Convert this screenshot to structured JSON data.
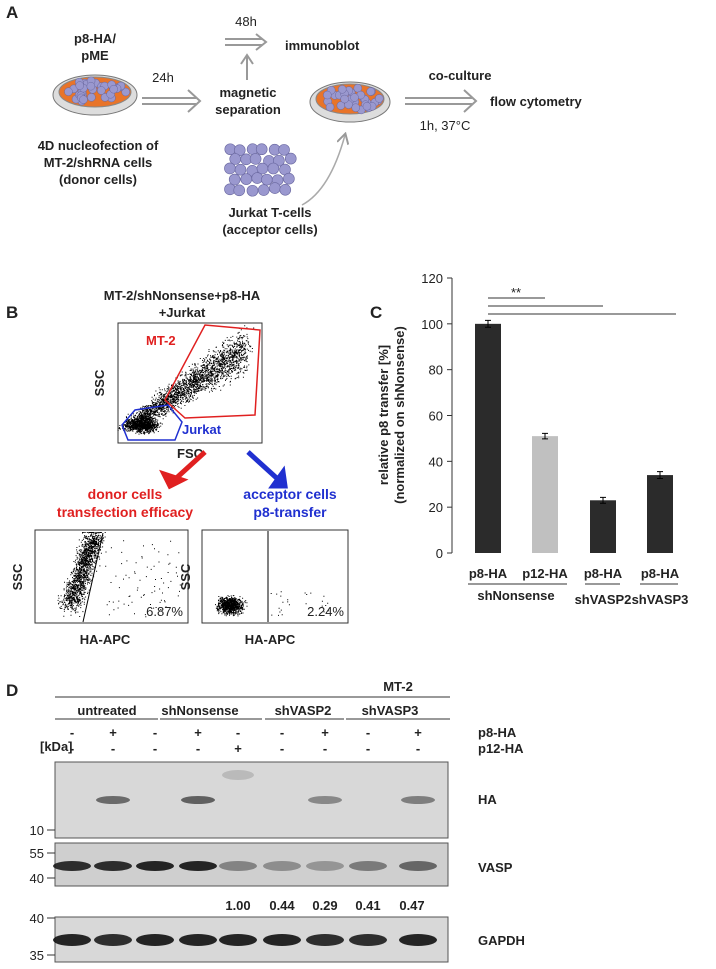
{
  "panel_labels": [
    "A",
    "B",
    "C",
    "D"
  ],
  "panel_a": {
    "dish_label": [
      "p8-HA/",
      "pME"
    ],
    "time_1": "24h",
    "time_2": "48h",
    "immunoblot": "immunoblot",
    "separation": [
      "magnetic",
      "separation"
    ],
    "coculture": "co-culture",
    "coculture_conditions": "1h, 37°C",
    "readout": "flow cytometry",
    "donor": [
      "4D nucleofection of",
      "MT-2/shRNA cells",
      "(donor cells)"
    ],
    "acceptor": [
      "Jurkat T-cells",
      "(acceptor cells)"
    ]
  },
  "panel_b": {
    "title": [
      "MT-2/shNonsense+p8-HA",
      "+Jurkat"
    ],
    "gates": [
      "MT-2",
      "Jurkat"
    ],
    "x_label": "FSC",
    "y_label": "SSC",
    "donor_title": [
      "donor cells",
      "transfection efficacy"
    ],
    "acceptor_title": [
      "acceptor cells",
      "p8-transfer"
    ],
    "plots": [
      {
        "y_label": "SSC",
        "x_label": "HA-APC",
        "percent": "6.87%"
      },
      {
        "y_label": "SSC",
        "x_label": "HA-APC",
        "percent": "2.24%"
      }
    ]
  },
  "chart_data": {
    "type": "bar",
    "ylabel": [
      "relative p8 transfer [%]",
      "(normalized on shNonsense)"
    ],
    "categories": [
      "p8-HA",
      "p12-HA",
      "p8-HA",
      "p8-HA"
    ],
    "groups": [
      "shNonsense",
      "shVASP2",
      "shVASP3"
    ],
    "values": [
      100,
      51,
      23,
      34
    ],
    "errors": [
      1.5,
      1.2,
      1.3,
      1.5
    ],
    "colors": [
      "#2b2b2b",
      "#c0c0c0",
      "#2b2b2b",
      "#2b2b2b"
    ],
    "significance": "**",
    "ylim": [
      0,
      120
    ],
    "yticks": [
      0,
      20,
      40,
      60,
      80,
      100,
      120
    ]
  },
  "panel_d": {
    "cell_line": "MT-2",
    "groups": [
      "untreated",
      "shNonsense",
      "shVASP2",
      "shVASP3"
    ],
    "rows": [
      {
        "label": "p8-HA",
        "lanes": [
          "-",
          "+",
          "-",
          "+",
          "-",
          "-",
          "+",
          "-",
          "+"
        ]
      },
      {
        "label": "p12-HA",
        "lanes": [
          "-",
          "-",
          "-",
          "-",
          "+",
          "-",
          "-",
          "-",
          "-"
        ]
      }
    ],
    "kda_label": "[kDa]",
    "blots": [
      {
        "label": "HA",
        "markers": [
          "10"
        ]
      },
      {
        "label": "VASP",
        "markers": [
          "55",
          "40"
        ]
      },
      {
        "label": "GAPDH",
        "markers": [
          "40",
          "35"
        ]
      }
    ],
    "quantification": [
      "1.00",
      "0.44",
      "0.29",
      "0.41",
      "0.47"
    ]
  }
}
